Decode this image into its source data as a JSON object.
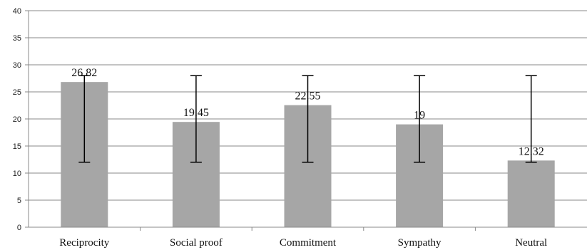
{
  "chart_data": {
    "type": "bar",
    "categories": [
      "Reciprocity",
      "Social proof",
      "Commitment",
      "Sympathy",
      "Neutral"
    ],
    "values": [
      26.82,
      19.45,
      22.55,
      19,
      12.32
    ],
    "data_labels": [
      "26.82",
      "19.45",
      "22.55",
      "19",
      "12.32"
    ],
    "error_bars": [
      {
        "low": 12,
        "high": 28
      },
      {
        "low": 12,
        "high": 28
      },
      {
        "low": 12,
        "high": 28
      },
      {
        "low": 12,
        "high": 28
      },
      {
        "low": 12,
        "high": 28
      }
    ],
    "yticks": [
      "0",
      "5",
      "10",
      "15",
      "20",
      "25",
      "30",
      "35",
      "40"
    ],
    "ylim": [
      0,
      40
    ],
    "grid": true,
    "legend": "none",
    "bar_color": "#a6a6a6",
    "grid_color": "#888888",
    "error_bar_color": "#000000"
  }
}
